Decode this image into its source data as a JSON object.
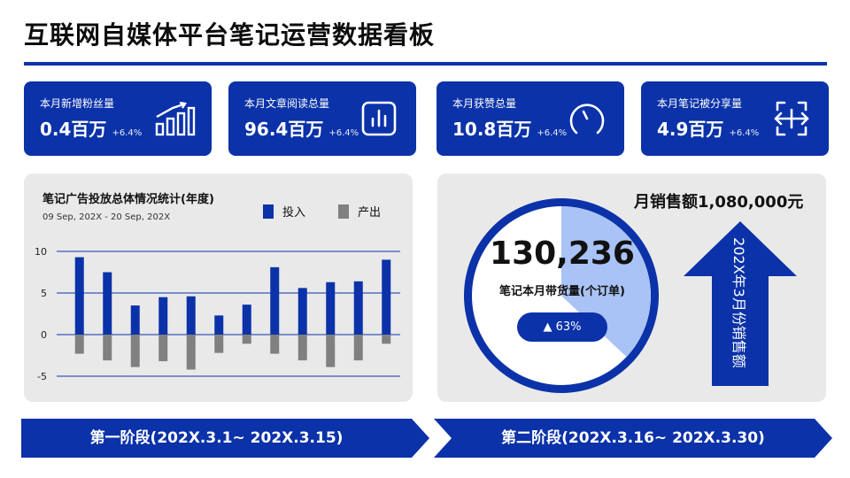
{
  "page": {
    "title": "互联网自媒体平台笔记运营数据看板"
  },
  "kpis": [
    {
      "label": "本月新增粉丝量",
      "value": "0.4百万",
      "change": "+6.4%",
      "icon": "bar-growth-icon"
    },
    {
      "label": "本月文章阅读总量",
      "value": "96.4百万",
      "change": "+6.4%",
      "icon": "analytics-frame-icon"
    },
    {
      "label": "本月获赞总量",
      "value": "10.8百万",
      "change": "+6.4%",
      "icon": "gauge-icon"
    },
    {
      "label": "本月笔记被分享量",
      "value": "4.9百万",
      "change": "+6.4%",
      "icon": "share-arrows-icon"
    }
  ],
  "ad_chart": {
    "title": "笔记广告投放总体情况统计(年度)",
    "date_range": "09 Sep, 202X - 20 Sep, 202X",
    "legend": {
      "input": "投入",
      "output": "产出"
    }
  },
  "chart_data": {
    "type": "bar",
    "y_ticks": [
      "10",
      "5",
      "0",
      "-5"
    ],
    "ylim": [
      -5,
      10
    ],
    "series": [
      {
        "name": "投入",
        "color": "#0b32a8",
        "values": [
          9.3,
          7.5,
          3.5,
          4.5,
          4.6,
          2.3,
          3.6,
          8.1,
          5.6,
          6.3,
          6.4,
          9.0
        ]
      },
      {
        "name": "产出",
        "color": "#808080",
        "values": [
          -2.3,
          -3.1,
          -3.9,
          -3.2,
          -4.2,
          -2.2,
          -1.1,
          -2.3,
          -3.1,
          -3.9,
          -3.1,
          -1.1
        ]
      }
    ]
  },
  "sales_circle": {
    "value": "130,236",
    "label": "笔记本月带货量(个订单)",
    "percent_text": "▲ 63%",
    "percent": 0.63
  },
  "sales_arrow": {
    "title": "月销售额1,080,000元",
    "caption": "202X年3月份销售额"
  },
  "stages": [
    {
      "label": "第一阶段(202X.3.1~ 202X.3.15)"
    },
    {
      "label": "第二阶段(202X.3.16~ 202X.3.30)"
    }
  ],
  "colors": {
    "brand": "#0b32a8",
    "light_blue": "#a9c3f6",
    "gray_bar": "#808080",
    "panel": "#e9e9ea"
  }
}
